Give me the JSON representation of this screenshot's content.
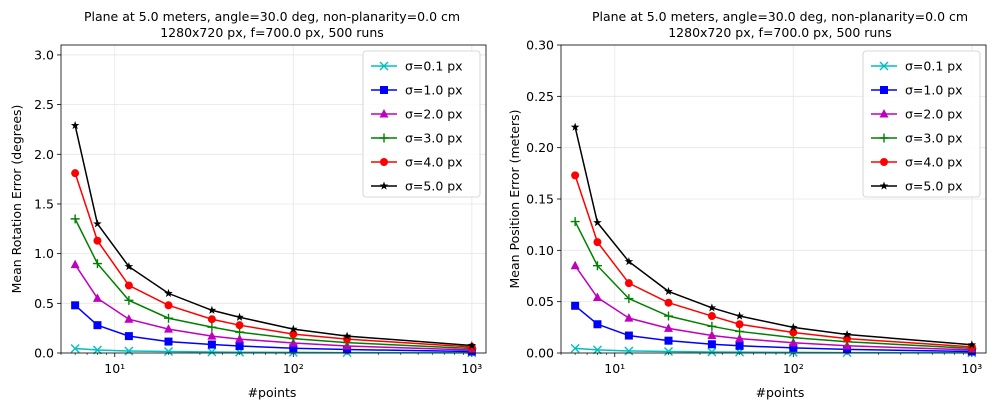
{
  "chart_data": [
    {
      "type": "line",
      "title": "Plane at 5.0 meters, angle=30.0 deg, non-planarity=0.0 cm",
      "subtitle": "1280x720 px, f=700.0 px, 500 runs",
      "xlabel": "#points",
      "ylabel": "Mean Rotation Error (degrees)",
      "xscale": "log",
      "xlim": [
        5,
        1200
      ],
      "ylim": [
        0,
        3.1
      ],
      "yticks": [
        "0.0",
        "0.5",
        "1.0",
        "1.5",
        "2.0",
        "2.5",
        "3.0"
      ],
      "xticks": [
        "10¹",
        "10²",
        "10³"
      ],
      "grid": true,
      "legend_position": "top-right",
      "x": [
        6,
        8,
        12,
        20,
        35,
        50,
        100,
        200,
        1000
      ],
      "series": [
        {
          "name": "σ=0.1 px",
          "color": "#00bfbf",
          "marker": "x",
          "values": [
            0.045,
            0.03,
            0.02,
            0.015,
            0.01,
            0.008,
            0.006,
            0.004,
            0.002
          ]
        },
        {
          "name": "σ=1.0 px",
          "color": "#0000ff",
          "marker": "square",
          "values": [
            0.48,
            0.28,
            0.17,
            0.115,
            0.085,
            0.07,
            0.048,
            0.035,
            0.015
          ]
        },
        {
          "name": "σ=2.0 px",
          "color": "#bf00bf",
          "marker": "triangle",
          "values": [
            0.89,
            0.55,
            0.34,
            0.24,
            0.17,
            0.14,
            0.1,
            0.07,
            0.03
          ]
        },
        {
          "name": "σ=3.0 px",
          "color": "#008000",
          "marker": "plus",
          "values": [
            1.35,
            0.9,
            0.53,
            0.35,
            0.26,
            0.21,
            0.145,
            0.105,
            0.045
          ]
        },
        {
          "name": "σ=4.0 px",
          "color": "#ff0000",
          "marker": "circle",
          "values": [
            1.81,
            1.13,
            0.68,
            0.48,
            0.34,
            0.28,
            0.19,
            0.14,
            0.06
          ]
        },
        {
          "name": "σ=5.0 px",
          "color": "#000000",
          "marker": "star",
          "values": [
            2.29,
            1.3,
            0.87,
            0.6,
            0.43,
            0.36,
            0.24,
            0.17,
            0.075
          ]
        }
      ]
    },
    {
      "type": "line",
      "title": "Plane at 5.0 meters, angle=30.0 deg, non-planarity=0.0 cm",
      "subtitle": "1280x720 px, f=700.0 px, 500 runs",
      "xlabel": "#points",
      "ylabel": "Mean Position Error (meters)",
      "xscale": "log",
      "xlim": [
        5,
        1200
      ],
      "ylim": [
        0,
        0.3
      ],
      "yticks": [
        "0.00",
        "0.05",
        "0.10",
        "0.15",
        "0.20",
        "0.25",
        "0.30"
      ],
      "xticks": [
        "10¹",
        "10²",
        "10³"
      ],
      "grid": true,
      "legend_position": "top-right",
      "x": [
        6,
        8,
        12,
        20,
        35,
        50,
        100,
        200,
        1000
      ],
      "series": [
        {
          "name": "σ=0.1 px",
          "color": "#00bfbf",
          "marker": "x",
          "values": [
            0.0045,
            0.003,
            0.002,
            0.0015,
            0.001,
            0.0008,
            0.0006,
            0.0004,
            0.0002
          ]
        },
        {
          "name": "σ=1.0 px",
          "color": "#0000ff",
          "marker": "square",
          "values": [
            0.046,
            0.028,
            0.017,
            0.012,
            0.0085,
            0.007,
            0.005,
            0.0035,
            0.0015
          ]
        },
        {
          "name": "σ=2.0 px",
          "color": "#bf00bf",
          "marker": "triangle",
          "values": [
            0.085,
            0.054,
            0.034,
            0.024,
            0.017,
            0.014,
            0.01,
            0.007,
            0.003
          ]
        },
        {
          "name": "σ=3.0 px",
          "color": "#008000",
          "marker": "plus",
          "values": [
            0.128,
            0.085,
            0.053,
            0.036,
            0.026,
            0.021,
            0.015,
            0.011,
            0.0045
          ]
        },
        {
          "name": "σ=4.0 px",
          "color": "#ff0000",
          "marker": "circle",
          "values": [
            0.173,
            0.108,
            0.068,
            0.049,
            0.036,
            0.028,
            0.02,
            0.014,
            0.006
          ]
        },
        {
          "name": "σ=5.0 px",
          "color": "#000000",
          "marker": "star",
          "values": [
            0.22,
            0.127,
            0.089,
            0.06,
            0.044,
            0.036,
            0.025,
            0.018,
            0.008
          ]
        }
      ]
    }
  ]
}
